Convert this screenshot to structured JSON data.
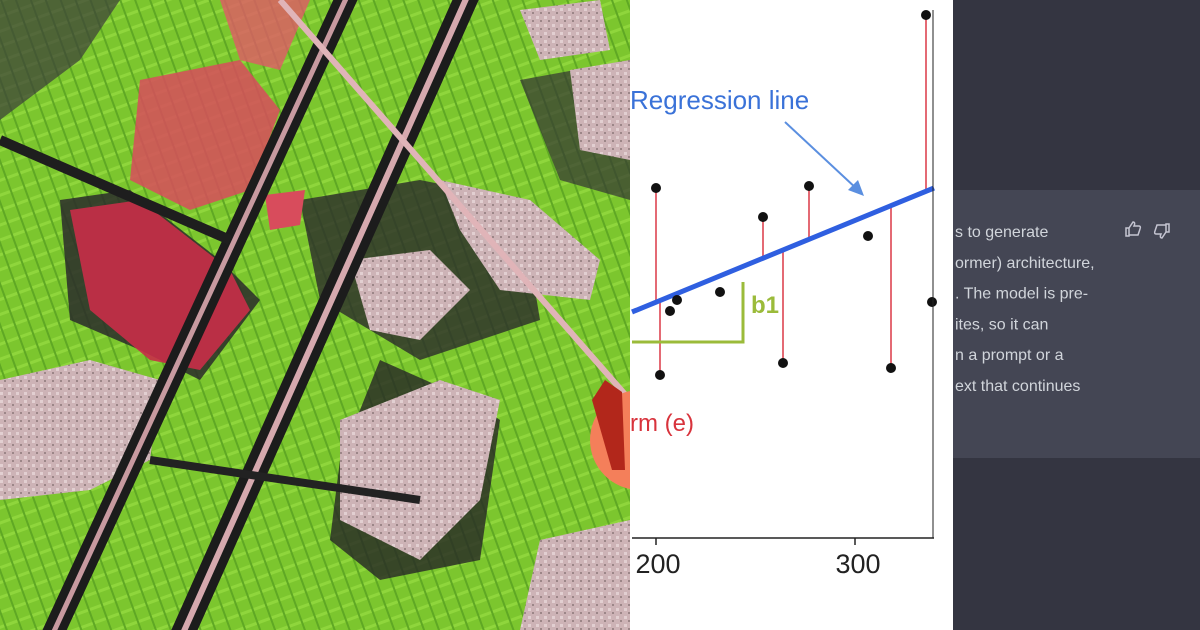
{
  "regression_panel": {
    "annotations": {
      "regression_line": "Regression line",
      "slope": "b1",
      "error_term": "rm (e)"
    },
    "x_axis_labels": [
      "200",
      "300"
    ]
  },
  "chat_panel": {
    "message_lines": [
      "s to generate",
      "ormer) architecture,",
      ". The model is pre-",
      "ites, so it can",
      "n a prompt or a",
      "ext that continues"
    ]
  }
}
